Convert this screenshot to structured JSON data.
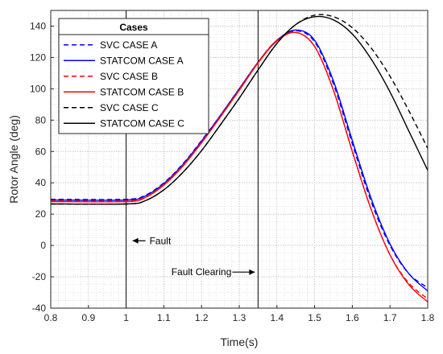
{
  "chart_data": {
    "type": "line",
    "xlabel": "Time(s)",
    "ylabel": "Rotor Angle (deg)",
    "xlim": [
      0.8,
      1.8
    ],
    "ylim": [
      -40,
      150
    ],
    "xticks": [
      0.8,
      0.9,
      1.0,
      1.1,
      1.2,
      1.3,
      1.4,
      1.5,
      1.6,
      1.7,
      1.8
    ],
    "xtick_labels": [
      "0.8",
      "0.9",
      "1",
      "1.1",
      "1.2",
      "1.3",
      "1.4",
      "1.5",
      "1.6",
      "1.7",
      "1.8"
    ],
    "yticks": [
      -40,
      -20,
      0,
      20,
      40,
      60,
      80,
      100,
      120,
      140
    ],
    "ytick_labels": [
      "-40",
      "-20",
      "0",
      "20",
      "40",
      "60",
      "80",
      "100",
      "120",
      "140"
    ],
    "grid": true,
    "minor_grid": true,
    "legend": {
      "title": "Cases",
      "placement": "top-left",
      "entries": [
        "SVC CASE A",
        "STATCOM CASE A",
        "SVC CASE B",
        "STATCOM CASE B",
        "SVC CASE C",
        "STATCOM CASE C"
      ]
    },
    "vertical_lines": [
      1.0,
      1.35
    ],
    "annotations": [
      {
        "text": "Fault",
        "x": 1.0,
        "y": 3,
        "arrow": "left"
      },
      {
        "text": "Fault Clearing",
        "x": 1.35,
        "y": -17,
        "arrow": "right"
      }
    ],
    "series": [
      {
        "name": "SVC CASE A",
        "color": "#0000ff",
        "dash": true,
        "x": [
          0.8,
          1.0,
          1.05,
          1.1,
          1.15,
          1.2,
          1.25,
          1.3,
          1.35,
          1.4,
          1.45,
          1.5,
          1.55,
          1.6,
          1.65,
          1.7,
          1.75,
          1.8
        ],
        "y": [
          29.5,
          29.5,
          32,
          40,
          52,
          67,
          83,
          100,
          117,
          131,
          137,
          130,
          103,
          65,
          28,
          0,
          -18,
          -27
        ]
      },
      {
        "name": "STATCOM CASE A",
        "color": "#0000ff",
        "dash": false,
        "x": [
          0.8,
          1.0,
          1.05,
          1.1,
          1.15,
          1.2,
          1.25,
          1.3,
          1.35,
          1.4,
          1.45,
          1.5,
          1.55,
          1.6,
          1.65,
          1.7,
          1.75,
          1.8
        ],
        "y": [
          29,
          29,
          31.5,
          39.5,
          51.5,
          66.5,
          83,
          100,
          117,
          131,
          137.5,
          131,
          105,
          67,
          30,
          1,
          -18,
          -29
        ]
      },
      {
        "name": "SVC CASE B",
        "color": "#ff0000",
        "dash": true,
        "x": [
          0.8,
          1.0,
          1.05,
          1.1,
          1.15,
          1.2,
          1.25,
          1.3,
          1.35,
          1.4,
          1.45,
          1.5,
          1.55,
          1.6,
          1.65,
          1.7,
          1.75,
          1.8
        ],
        "y": [
          28.5,
          28.5,
          31,
          39,
          51,
          66,
          82.5,
          99.5,
          117,
          131,
          136,
          127,
          99,
          60,
          23,
          -6,
          -24,
          -34
        ]
      },
      {
        "name": "STATCOM CASE B",
        "color": "#ff0000",
        "dash": false,
        "x": [
          0.8,
          1.0,
          1.05,
          1.1,
          1.15,
          1.2,
          1.25,
          1.3,
          1.35,
          1.4,
          1.45,
          1.5,
          1.55,
          1.6,
          1.65,
          1.7,
          1.75,
          1.8
        ],
        "y": [
          28,
          28,
          30.5,
          38.5,
          50.5,
          65.5,
          82,
          99,
          116.5,
          130.5,
          136,
          127,
          99,
          60,
          23,
          -6,
          -25,
          -36
        ]
      },
      {
        "name": "SVC CASE C",
        "color": "#000000",
        "dash": true,
        "x": [
          0.8,
          1.0,
          1.05,
          1.1,
          1.15,
          1.2,
          1.25,
          1.3,
          1.35,
          1.4,
          1.45,
          1.5,
          1.55,
          1.6,
          1.65,
          1.7,
          1.75,
          1.8
        ],
        "y": [
          26.5,
          26.5,
          28.5,
          35.5,
          46.5,
          60.5,
          77,
          94,
          112,
          129,
          141,
          147,
          146,
          139,
          126,
          108,
          86,
          62
        ]
      },
      {
        "name": "STATCOM CASE C",
        "color": "#000000",
        "dash": false,
        "x": [
          0.8,
          1.0,
          1.05,
          1.1,
          1.15,
          1.2,
          1.25,
          1.3,
          1.35,
          1.4,
          1.45,
          1.5,
          1.55,
          1.6,
          1.65,
          1.7,
          1.75,
          1.8
        ],
        "y": [
          26.5,
          26.5,
          28.5,
          35.5,
          46.5,
          60.5,
          77,
          94,
          112,
          129,
          141,
          146,
          144,
          135,
          119,
          98,
          73,
          48
        ]
      }
    ]
  }
}
